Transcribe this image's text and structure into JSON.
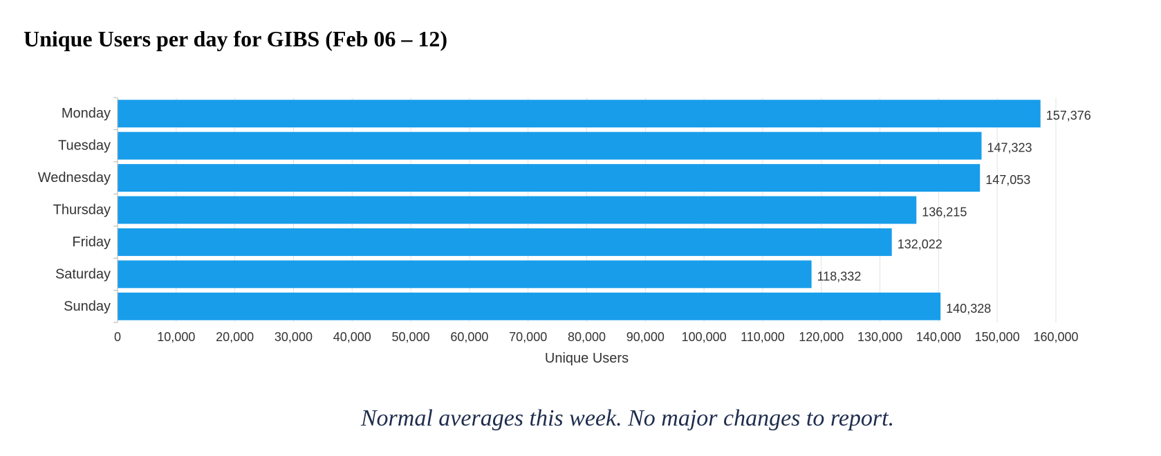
{
  "title": "Unique Users per day for GIBS (Feb 06 – 12)",
  "caption": "Normal averages this week.  No major changes to report.",
  "chart_data": {
    "type": "bar",
    "orientation": "horizontal",
    "categories": [
      "Monday",
      "Tuesday",
      "Wednesday",
      "Thursday",
      "Friday",
      "Saturday",
      "Sunday"
    ],
    "values": [
      157376,
      147323,
      147053,
      136215,
      132022,
      118332,
      140328
    ],
    "value_labels": [
      "157,376",
      "147,323",
      "147,053",
      "136,215",
      "132,022",
      "118,332",
      "140,328"
    ],
    "xlabel": "Unique Users",
    "ylabel": "",
    "xlim": [
      0,
      160000
    ],
    "xticks": [
      0,
      10000,
      20000,
      30000,
      40000,
      50000,
      60000,
      70000,
      80000,
      90000,
      100000,
      110000,
      120000,
      130000,
      140000,
      150000,
      160000
    ],
    "xtick_labels": [
      "0",
      "10,000",
      "20,000",
      "30,000",
      "40,000",
      "50,000",
      "60,000",
      "70,000",
      "80,000",
      "90,000",
      "100,000",
      "110,000",
      "120,000",
      "130,000",
      "140,000",
      "150,000",
      "160,000"
    ],
    "grid": "vertical",
    "bar_color": "#189deb",
    "grid_color": "#e3e3e3",
    "axis_color": "#b5b5b5",
    "text_color": "#333333"
  }
}
